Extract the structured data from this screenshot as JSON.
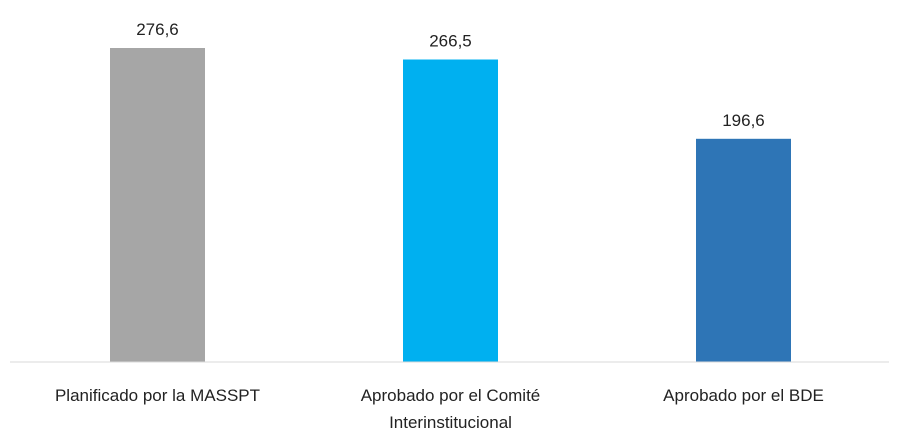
{
  "chart_data": {
    "type": "bar",
    "categories": [
      [
        "Planificado por la MASSPT"
      ],
      [
        "Aprobado por el Comité",
        "Interinstitucional"
      ],
      [
        "Aprobado por el BDE"
      ]
    ],
    "values": [
      276.6,
      266.5,
      196.6
    ],
    "value_labels": [
      "276,6",
      "266,5",
      "196,6"
    ],
    "bar_colors": [
      "#a6a6a6",
      "#00b0f0",
      "#2e75b6"
    ],
    "axis_color": "#d9d9d9",
    "ylim": [
      0,
      300
    ],
    "grid": false,
    "legend": "none",
    "title": "",
    "xlabel": "",
    "ylabel": ""
  }
}
